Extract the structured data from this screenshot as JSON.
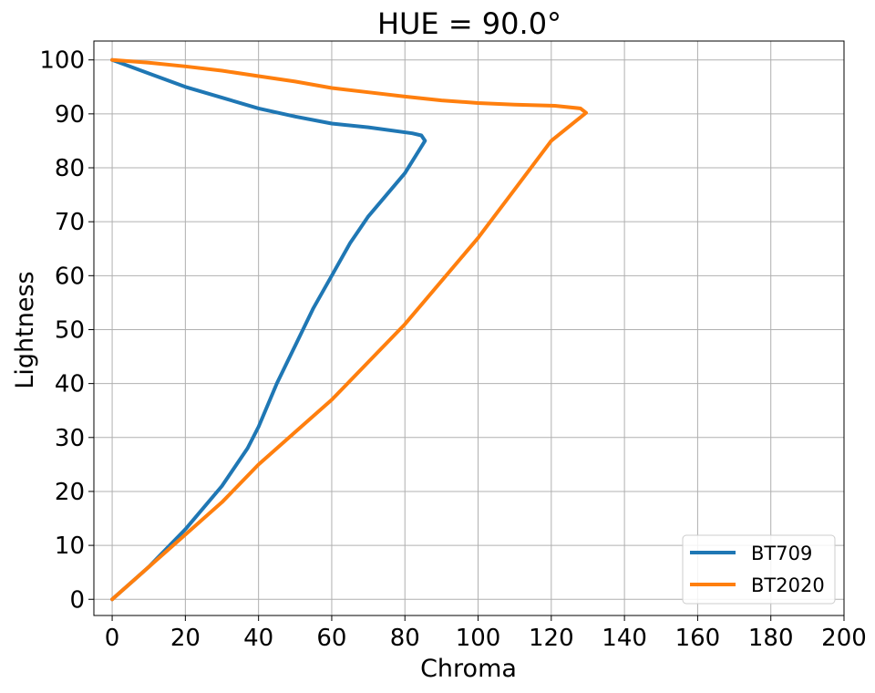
{
  "chart_data": {
    "type": "line",
    "title": "HUE = 90.0°",
    "xlabel": "Chroma",
    "ylabel": "Lightness",
    "xlim": [
      -5,
      200
    ],
    "ylim": [
      -3,
      103.5
    ],
    "xticks": [
      0,
      20,
      40,
      60,
      80,
      100,
      120,
      140,
      160,
      180,
      200
    ],
    "yticks": [
      0,
      10,
      20,
      30,
      40,
      50,
      60,
      70,
      80,
      90,
      100
    ],
    "grid": true,
    "legend_position": "lower-right",
    "series": [
      {
        "name": "BT709",
        "color": "#1f77b4",
        "points": [
          [
            0,
            0
          ],
          [
            10,
            6
          ],
          [
            20,
            13
          ],
          [
            30,
            21
          ],
          [
            37,
            28
          ],
          [
            40,
            32
          ],
          [
            45,
            40
          ],
          [
            50,
            47
          ],
          [
            55,
            54
          ],
          [
            60,
            60
          ],
          [
            65,
            66
          ],
          [
            70,
            71
          ],
          [
            75,
            75
          ],
          [
            80,
            79
          ],
          [
            85.5,
            85
          ],
          [
            84.5,
            86
          ],
          [
            82,
            86.4
          ],
          [
            70,
            87.5
          ],
          [
            60,
            88.2
          ],
          [
            50,
            89.5
          ],
          [
            40,
            91
          ],
          [
            30,
            93
          ],
          [
            20,
            95
          ],
          [
            10,
            97.5
          ],
          [
            0,
            100
          ]
        ]
      },
      {
        "name": "BT2020",
        "color": "#ff7f0e",
        "points": [
          [
            0,
            0
          ],
          [
            10,
            6
          ],
          [
            20,
            12
          ],
          [
            30,
            18
          ],
          [
            40,
            25
          ],
          [
            50,
            31
          ],
          [
            60,
            37
          ],
          [
            70,
            44
          ],
          [
            80,
            51
          ],
          [
            90,
            59
          ],
          [
            100,
            67
          ],
          [
            110,
            76
          ],
          [
            120,
            85
          ],
          [
            129.5,
            90.2
          ],
          [
            128,
            91
          ],
          [
            121,
            91.5
          ],
          [
            110,
            91.7
          ],
          [
            100,
            92
          ],
          [
            90,
            92.5
          ],
          [
            80,
            93.2
          ],
          [
            70,
            94
          ],
          [
            60,
            94.8
          ],
          [
            50,
            96
          ],
          [
            40,
            97
          ],
          [
            30,
            98
          ],
          [
            20,
            98.8
          ],
          [
            10,
            99.5
          ],
          [
            0,
            100
          ]
        ]
      }
    ]
  }
}
